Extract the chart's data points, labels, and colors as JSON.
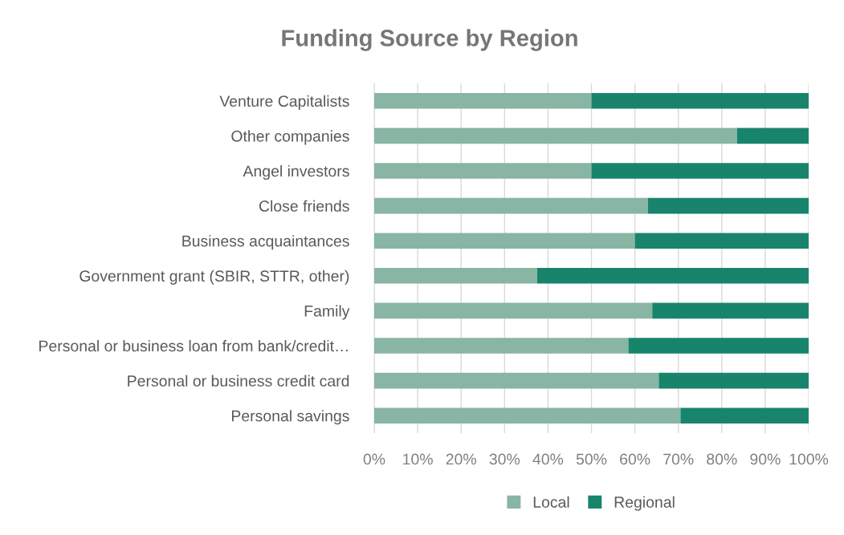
{
  "chart_data": {
    "type": "bar",
    "title": "Funding Source by Region",
    "orientation": "horizontal",
    "stacked": true,
    "categories": [
      "Venture Capitalists",
      "Other companies",
      "Angel investors",
      "Close friends",
      "Business acquaintances",
      "Government grant (SBIR, STTR, other)",
      "Family",
      "Personal or business loan from bank/credit…",
      "Personal or business credit card",
      "Personal savings"
    ],
    "series": [
      {
        "name": "Local",
        "color": "#88b5a4",
        "values": [
          50,
          83.5,
          50,
          63,
          60,
          37.5,
          64,
          58.5,
          65.5,
          70.5
        ]
      },
      {
        "name": "Regional",
        "color": "#18846c",
        "values": [
          50,
          16.5,
          50,
          37,
          40,
          62.5,
          36,
          41.5,
          34.5,
          29.5
        ]
      }
    ],
    "xlim": [
      0,
      100
    ],
    "xticks": [
      {
        "value": 0,
        "label": "0%"
      },
      {
        "value": 10,
        "label": "10%"
      },
      {
        "value": 20,
        "label": "20%"
      },
      {
        "value": 30,
        "label": "30%"
      },
      {
        "value": 40,
        "label": "40%"
      },
      {
        "value": 50,
        "label": "50%"
      },
      {
        "value": 60,
        "label": "60%"
      },
      {
        "value": 70,
        "label": "70%"
      },
      {
        "value": 80,
        "label": "80%"
      },
      {
        "value": 90,
        "label": "90%"
      },
      {
        "value": 100,
        "label": "100%"
      }
    ],
    "grid": "x",
    "legend": "bottom"
  }
}
